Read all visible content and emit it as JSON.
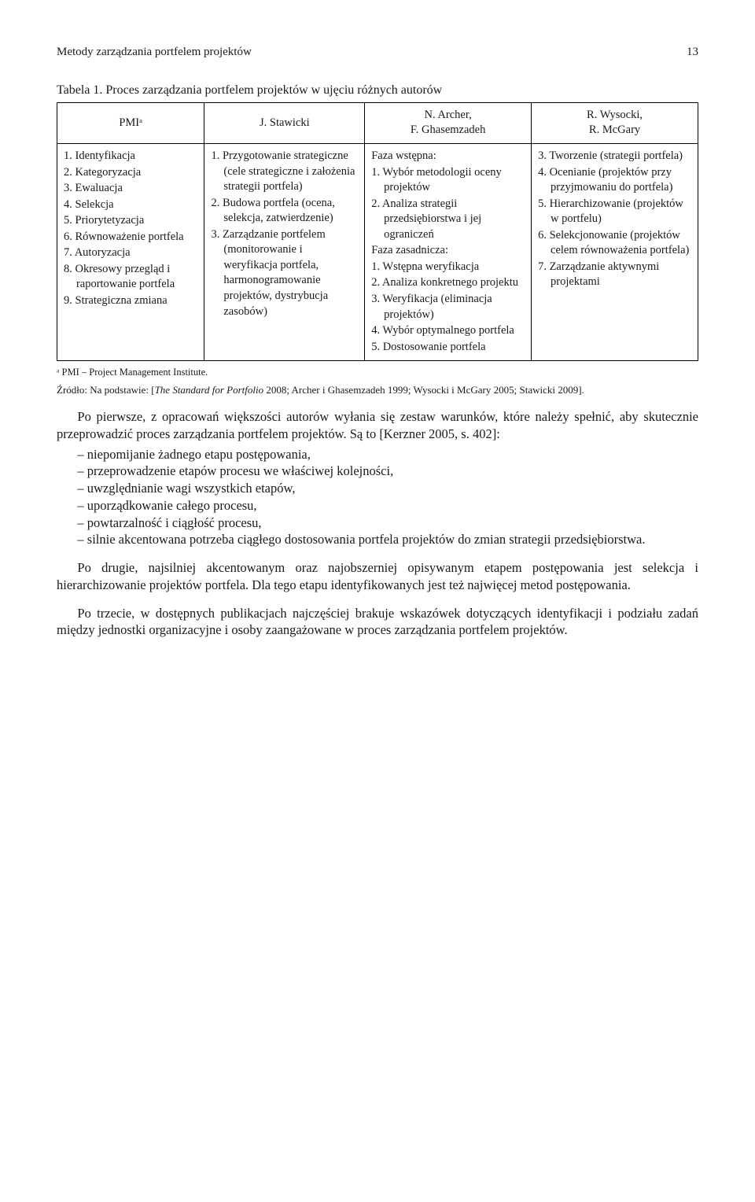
{
  "runningHead": {
    "title": "Metody zarządzania portfelem projektów",
    "pageNumber": "13"
  },
  "tableCaption": "Tabela 1. Proces zarządzania portfelem projektów w ujęciu różnych autorów",
  "table": {
    "headers": {
      "c1": "PMIᵃ",
      "c2": "J. Stawicki",
      "c3a": "N. Archer,",
      "c3b": "F. Ghasemzadeh",
      "c4a": "R. Wysocki,",
      "c4b": "R. McGary"
    },
    "cells": {
      "c1": [
        "1. Identyfikacja",
        "2. Kategoryzacja",
        "3. Ewaluacja",
        "4. Selekcja",
        "5. Priorytetyzacja",
        "6. Równoważenie portfela",
        "7. Autoryzacja",
        "8. Okresowy przegląd i raportowanie portfela",
        "9. Strategiczna zmiana"
      ],
      "c2": [
        "1. Przygotowanie strategiczne (cele strategiczne i założenia strategii portfela)",
        "2. Budowa portfela (ocena, selekcja, zatwierdzenie)",
        "3. Zarządzanie portfelem (monitorowanie i weryfikacja portfela, harmonogramowanie projektów, dystrybucja zasobów)"
      ],
      "c3": [
        "Faza wstępna:",
        "1. Wybór metodologii oceny projektów",
        "2. Analiza strategii przedsiębiorstwa i jej ograniczeń",
        "Faza zasadnicza:",
        "1. Wstępna weryfikacja",
        "2. Analiza konkretnego projektu",
        "3. Weryfikacja (eliminacja projektów)",
        "4. Wybór optymalnego portfela",
        "5. Dostosowanie portfela"
      ],
      "c4": [
        "3. Tworzenie (strategii portfela)",
        "4. Ocenianie (projektów przy przyjmowaniu do portfela)",
        "5. Hierarchizowanie (projektów w portfelu)",
        "6. Selekcjonowanie (projektów celem równoważenia portfela)",
        "7. Zarządzanie aktywnymi projektami"
      ]
    }
  },
  "footnote": "ᵃ PMI – Project Management Institute.",
  "source": {
    "label": "Źródło: Na podstawie: [",
    "ital": "The Standard for Portfolio",
    "rest": " 2008; Archer i Ghasemzadeh 1999; Wysocki i McGary 2005; Stawicki 2009]."
  },
  "para1": "Po pierwsze, z opracowań większości autorów wyłania się zestaw warunków, które należy spełnić, aby skutecznie przeprowadzić proces zarządzania portfelem projektów. Są to [Kerzner 2005, s. 402]:",
  "bullets": [
    "– niepomijanie żadnego etapu postępowania,",
    "– przeprowadzenie etapów procesu we właściwej kolejności,",
    "– uwzględnianie wagi wszystkich etapów,",
    "– uporządkowanie całego procesu,",
    "– powtarzalność i ciągłość procesu,",
    "– silnie akcentowana potrzeba ciągłego dostosowania portfela projektów do zmian strategii przedsiębiorstwa."
  ],
  "para2": "Po drugie, najsilniej akcentowanym oraz najobszerniej opisywanym etapem postępowania jest selekcja i hierarchizowanie projektów portfela. Dla tego etapu identyfikowanych jest też najwięcej metod postępowania.",
  "para3": "Po trzecie, w dostępnych publikacjach najczęściej brakuje wskazówek dotyczących identyfikacji i podziału zadań między jednostki organizacyjne i osoby zaangażowane w proces zarządzania portfelem projektów."
}
